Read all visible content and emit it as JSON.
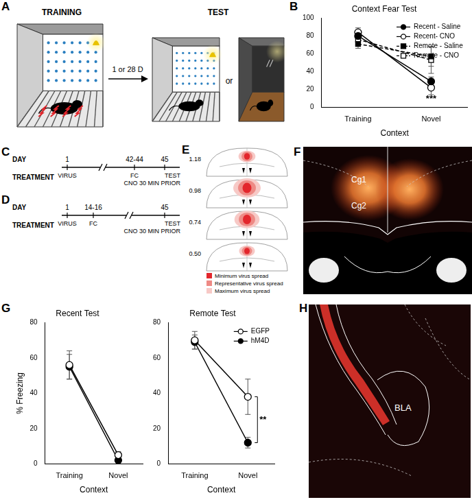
{
  "chart_data": [
    {
      "type": "line",
      "title": "Context Fear Test",
      "x_label": "Context",
      "categories": [
        "Training",
        "Novel"
      ],
      "ylim": [
        0,
        100
      ],
      "yticks": [
        0,
        20,
        40,
        60,
        80,
        100
      ],
      "legend": "upper right",
      "grid": false,
      "series": [
        {
          "name": "Recent - Saline",
          "color": "#000000",
          "marker": "circle",
          "line_style": "solid",
          "values": [
            80,
            29
          ],
          "errors": [
            4,
            5
          ]
        },
        {
          "name": "Recent- CNO",
          "color": "#000000",
          "marker": "open_circle",
          "line_style": "solid",
          "values": [
            84,
            22
          ],
          "errors": [
            5,
            8
          ]
        },
        {
          "name": "Remote - Saline",
          "color": "#000000",
          "marker": "square",
          "line_style": "dashed",
          "values": [
            71,
            57
          ],
          "errors": [
            5,
            11
          ]
        },
        {
          "name": "Remote - CNO",
          "color": "#000000",
          "marker": "open_square",
          "line_style": "dashed",
          "values": [
            76,
            53
          ],
          "errors": [
            6,
            15
          ]
        }
      ],
      "annotations": [
        {
          "text": "***",
          "x": "Novel",
          "y": 9
        }
      ]
    },
    {
      "type": "line",
      "title": "Recent Test",
      "x_label": "Context",
      "y_label": "% Freezing",
      "categories": [
        "Training",
        "Novel"
      ],
      "ylim": [
        0,
        80
      ],
      "yticks": [
        0,
        20,
        40,
        60,
        80
      ],
      "grid": false,
      "series": [
        {
          "color": "#000000",
          "marker": "open_circle",
          "line_style": "solid",
          "values": [
            56,
            5
          ],
          "errors": [
            8,
            2
          ]
        },
        {
          "color": "#000000",
          "marker": "circle",
          "line_style": "solid",
          "values": [
            55,
            2
          ],
          "errors": [
            7,
            1
          ]
        }
      ]
    },
    {
      "type": "line",
      "title": "Remote Test",
      "x_label": "Context",
      "categories": [
        "Training",
        "Novel"
      ],
      "ylim": [
        0,
        80
      ],
      "yticks": [
        0,
        20,
        40,
        60,
        80
      ],
      "grid": false,
      "legend": "upper right",
      "series": [
        {
          "name": "EGFP",
          "color": "#000000",
          "marker": "open_circle",
          "line_style": "solid",
          "values": [
            70,
            38
          ],
          "errors": [
            5,
            10
          ]
        },
        {
          "name": "hM4D",
          "color": "#000000",
          "marker": "circle",
          "line_style": "solid",
          "values": [
            69,
            12
          ],
          "errors": [
            4,
            3
          ]
        }
      ],
      "annotations": [
        {
          "text": "**",
          "x": "Novel",
          "y": 25,
          "bracket": [
            12,
            38
          ]
        }
      ]
    }
  ],
  "panels": {
    "A": {
      "letter": "A",
      "training_label": "TRAINING",
      "test_label": "TEST",
      "interval": "1 or 28 D",
      "or": "or"
    },
    "B": {
      "letter": "B"
    },
    "C": {
      "letter": "C",
      "day_label": "DAY",
      "treatment_label": "TREATMENT",
      "events": [
        {
          "day": "1",
          "treatment": [
            "VIRUS"
          ]
        },
        {
          "day": "42-44",
          "treatment": [
            "FC"
          ]
        },
        {
          "day": "45",
          "treatment": [
            "TEST",
            "CNO 30 MIN PRIOR"
          ]
        }
      ]
    },
    "D": {
      "letter": "D",
      "day_label": "DAY",
      "treatment_label": "TREATMENT",
      "events": [
        {
          "day": "1",
          "treatment": [
            "VIRUS"
          ]
        },
        {
          "day": "14-16",
          "treatment": [
            "FC"
          ]
        },
        {
          "day": "45",
          "treatment": [
            "TEST",
            "CNO 30 MIN PRIOR"
          ]
        }
      ]
    },
    "E": {
      "letter": "E",
      "sections": [
        "1.18",
        "0.98",
        "0.74",
        "0.50"
      ],
      "legend": [
        {
          "label": "Minimum virus spread",
          "color": "#e3262c"
        },
        {
          "label": "Representative virus spread",
          "color": "#ee8a85"
        },
        {
          "label": "Maximum virus spread",
          "color": "#f7c9c6"
        }
      ]
    },
    "F": {
      "letter": "F",
      "labels": [
        "Cg1",
        "Cg2"
      ]
    },
    "G": {
      "letter": "G"
    },
    "H": {
      "letter": "H",
      "labels": [
        "BLA"
      ]
    }
  }
}
